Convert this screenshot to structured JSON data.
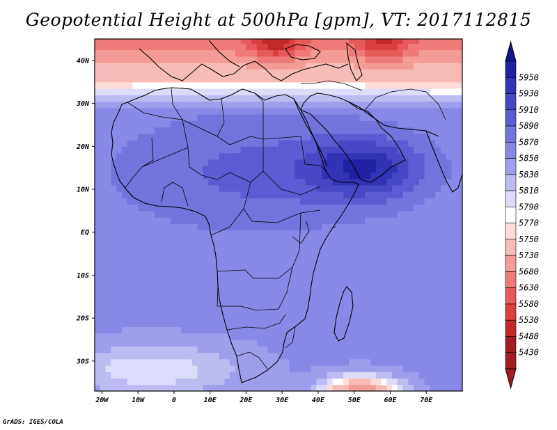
{
  "title": "Geopotential Height at 500hPa [gpm], VT: 2017112815",
  "credit": "GrADS: IGES/COLA",
  "colors": {
    "levels": [
      "#a11c1f",
      "#c22a2a",
      "#dc3f3f",
      "#e65a5a",
      "#ee7b78",
      "#f39b97",
      "#f8bcb8",
      "#fcdcd8",
      "#ffffff",
      "#dcdcfa",
      "#bcbcf3",
      "#9e9eec",
      "#8888e6",
      "#7474dd",
      "#5c5cd2",
      "#4848c4",
      "#3232b4",
      "#2020a0",
      "#14148c"
    ]
  },
  "chart_data": {
    "type": "heatmap",
    "variable": "Geopotential Height at 500hPa",
    "units": "gpm",
    "valid_time": "2017112815",
    "x_ticks": [
      "20W",
      "10W",
      "0",
      "10E",
      "20E",
      "30E",
      "40E",
      "50E",
      "60E",
      "70E"
    ],
    "y_ticks": [
      "40N",
      "30N",
      "20N",
      "10N",
      "EQ",
      "10S",
      "20S",
      "30S"
    ],
    "xlim": [
      -22,
      80
    ],
    "ylim": [
      -37,
      45
    ],
    "x_tick_values": [
      -20,
      -10,
      0,
      10,
      20,
      30,
      40,
      50,
      60,
      70
    ],
    "y_tick_values": [
      40,
      30,
      20,
      10,
      0,
      -10,
      -20,
      -30
    ],
    "colorbar_labels": [
      "5950",
      "5930",
      "5910",
      "5890",
      "5870",
      "5850",
      "5830",
      "5810",
      "5790",
      "5770",
      "5750",
      "5730",
      "5680",
      "5630",
      "5580",
      "5530",
      "5480",
      "5430"
    ],
    "levels": [
      5430,
      5480,
      5530,
      5580,
      5630,
      5680,
      5730,
      5750,
      5770,
      5790,
      5810,
      5830,
      5850,
      5870,
      5890,
      5910,
      5930,
      5950
    ]
  }
}
